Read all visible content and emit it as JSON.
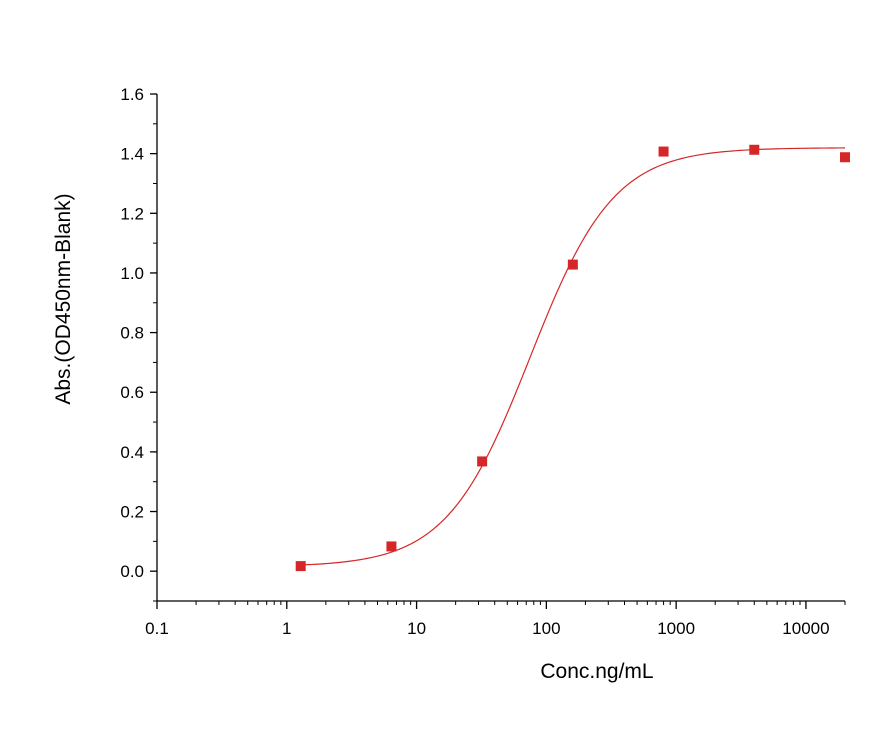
{
  "chart_data": {
    "type": "scatter",
    "title": "",
    "xlabel": "Conc.ng/mL",
    "ylabel": "Abs.(OD450nm-Blank)",
    "xscale": "log",
    "xlim": [
      0.1,
      20000
    ],
    "ylim": [
      -0.1,
      1.6
    ],
    "xticks": [
      0.1,
      1,
      10,
      100,
      1000,
      10000
    ],
    "xtick_labels": [
      "0.1",
      "1",
      "10",
      "100",
      "1000",
      "10000"
    ],
    "yticks": [
      0.0,
      0.2,
      0.4,
      0.6,
      0.8,
      1.0,
      1.2,
      1.4,
      1.6
    ],
    "ytick_labels": [
      "0.0",
      "0.2",
      "0.4",
      "0.6",
      "0.8",
      "1.0",
      "1.2",
      "1.4",
      "1.6"
    ],
    "grid": false,
    "legend": "none",
    "series": [
      {
        "kind": "points",
        "marker": "square",
        "color": "#d62728",
        "x": [
          1.28,
          6.4,
          32,
          160,
          800,
          4000,
          20000
        ],
        "y": [
          0.017,
          0.083,
          0.368,
          1.028,
          1.407,
          1.413,
          1.388
        ]
      },
      {
        "kind": "fit-curve",
        "color": "#d62728",
        "model": "4PL",
        "params": {
          "bottom": 0.015,
          "top": 1.42,
          "ec50": 75,
          "hill": 1.35
        },
        "x_range": [
          1.28,
          20000
        ]
      }
    ]
  }
}
